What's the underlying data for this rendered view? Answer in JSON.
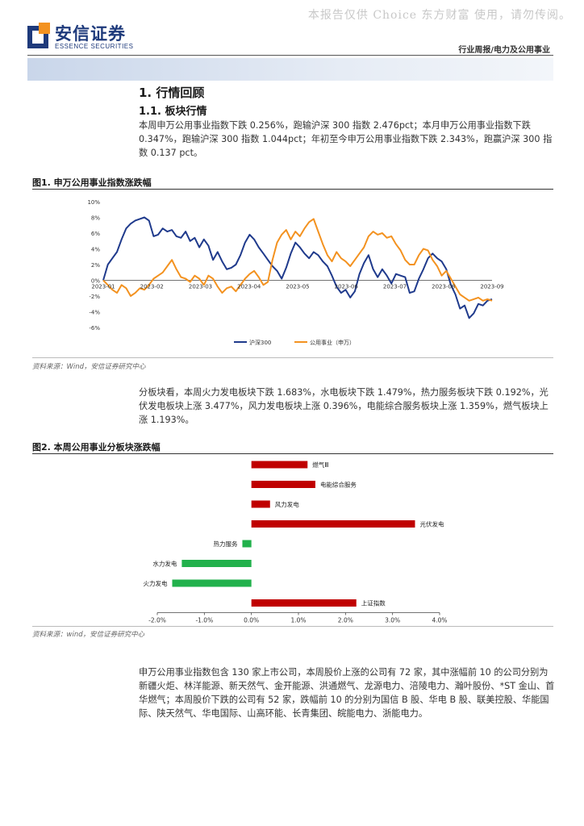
{
  "watermark": "本报告仅供 Choice 东方财富 使用，请勿传阅。",
  "header": {
    "logo_cn": "安信证券",
    "logo_en": "ESSENCE SECURITIES",
    "report_type": "行业周报/电力及公用事业"
  },
  "section": {
    "h1": "1. 行情回顾",
    "h2": "1.1. 板块行情",
    "para1": "本周申万公用事业指数下跌 0.256%，跑输沪深 300 指数 2.476pct；本月申万公用事业指数下跌 0.347%，跑输沪深 300 指数 1.044pct；年初至今申万公用事业指数下跌 2.343%，跑赢沪深 300 指数 0.137 pct。",
    "para2": "分板块看，本周火力发电板块下跌 1.683%，水电板块下跌 1.479%，热力服务板块下跌 0.192%，光伏发电板块上涨 3.477%，风力发电板块上涨 0.396%，电能综合服务板块上涨 1.359%，燃气板块上涨 1.193%。",
    "para3": "申万公用事业指数包含 130 家上市公司，本周股价上涨的公司有 72 家，其中涨幅前 10 的公司分别为新疆火炬、林洋能源、新天然气、金开能源、洪通燃气、龙源电力、涪陵电力、瀚叶股份、*ST 金山、首华燃气；本周股价下跌的公司有 52 家，跌幅前 10 的分别为国信 B 股、华电 B 股、联美控股、华能国际、陕天然气、华电国际、山高环能、长青集团、皖能电力、浙能电力。"
  },
  "figure1": {
    "title": "图1. 申万公用事业指数涨跌幅",
    "source": "资料来源：Wind，安信证券研究中心"
  },
  "figure2": {
    "title": "图2. 本周公用事业分板块涨跌幅",
    "source": "资料来源：wind，安信证券研究中心"
  },
  "colors": {
    "brand_blue": "#1e3a7b",
    "hs300": "#1f3a8c",
    "utility": "#f39220",
    "bar_up": "#c00000",
    "bar_down": "#22b14c"
  },
  "chart_data": [
    {
      "type": "line",
      "x_ticks": [
        "2023-01",
        "2023-02",
        "2023-03",
        "2023-04",
        "2023-05",
        "2023-06",
        "2023-07",
        "2023-08",
        "2023-09"
      ],
      "y_ticks": [
        "10%",
        "8%",
        "6%",
        "4%",
        "2%",
        "0%",
        "-2%",
        "-4%",
        "-6%"
      ],
      "ylim": [
        -6,
        10
      ],
      "legend_position": "bottom",
      "series": [
        {
          "name": "沪深300",
          "color": "#1f3a8c",
          "values": [
            0,
            2,
            2.8,
            3.6,
            5.2,
            6.6,
            7.2,
            7.6,
            7.8,
            8,
            7.6,
            5.6,
            5.8,
            6.6,
            6.2,
            6.4,
            5.6,
            5.4,
            6.2,
            5,
            5.4,
            4.2,
            5.2,
            4.4,
            2.6,
            3.6,
            2.4,
            1.4,
            1.6,
            2,
            3.2,
            4.8,
            5.8,
            5.2,
            4.2,
            3.4,
            2.6,
            1.8,
            1.2,
            0.2,
            1.6,
            3.4,
            4.8,
            4.2,
            3.4,
            2.8,
            3.6,
            3.2,
            2.4,
            1.8,
            0.6,
            -0.8,
            -1.6,
            -1.2,
            -2.2,
            -1.4,
            0.8,
            2.2,
            3.2,
            1.4,
            0.4,
            1.4,
            0.6,
            -0.4,
            0.8,
            0.6,
            0.4,
            -1.6,
            -1.4,
            0.2,
            1.4,
            2.8,
            3.4,
            2.8,
            2.4,
            1.4,
            -0.6,
            -1.8,
            -3.6,
            -3.2,
            -4.8,
            -4.2,
            -3,
            -3.2,
            -2.6,
            -2.4
          ]
        },
        {
          "name": "公用事业（申万）",
          "color": "#f39220",
          "values": [
            0,
            -0.6,
            -1.2,
            -1.6,
            -0.6,
            -1,
            -2,
            -1.6,
            -1,
            -1.2,
            -0.6,
            0.2,
            0.6,
            1,
            1.8,
            2.6,
            1.4,
            0.4,
            0.2,
            -0.2,
            0.6,
            0.2,
            -0.6,
            0.6,
            0.2,
            -0.8,
            -1.6,
            -1,
            -0.8,
            -1.4,
            -0.6,
            0.2,
            0.8,
            1.2,
            0.4,
            -0.6,
            -0.2,
            2.6,
            4.8,
            5.8,
            6.4,
            5.2,
            6.2,
            5.6,
            6.6,
            7.4,
            7.8,
            6.2,
            4.6,
            3.2,
            2.4,
            3.6,
            2.8,
            2.4,
            1.8,
            2.6,
            3.4,
            4.2,
            5.6,
            6.2,
            5.8,
            6,
            5.4,
            5.6,
            4.6,
            3.8,
            2.6,
            2,
            2,
            3.2,
            4,
            3.8,
            2.6,
            1.8,
            0.6,
            1.2,
            0.2,
            -0.8,
            -1.8,
            -2.2,
            -2.6,
            -2.4,
            -2.2,
            -2.6,
            -2.4,
            -2.6
          ]
        }
      ]
    },
    {
      "type": "bar",
      "orientation": "horizontal",
      "categories": [
        "燃气Ⅲ",
        "电能综合服务",
        "风力发电",
        "光伏发电",
        "热力服务",
        "水力发电",
        "火力发电",
        "上证指数"
      ],
      "values": [
        1.193,
        1.359,
        0.396,
        3.477,
        -0.192,
        -1.479,
        -1.683,
        2.23
      ],
      "x_ticks": [
        "-2.0%",
        "-1.0%",
        "0.0%",
        "1.0%",
        "2.0%",
        "3.0%",
        "4.0%"
      ],
      "xlim": [
        -2,
        4
      ]
    }
  ]
}
